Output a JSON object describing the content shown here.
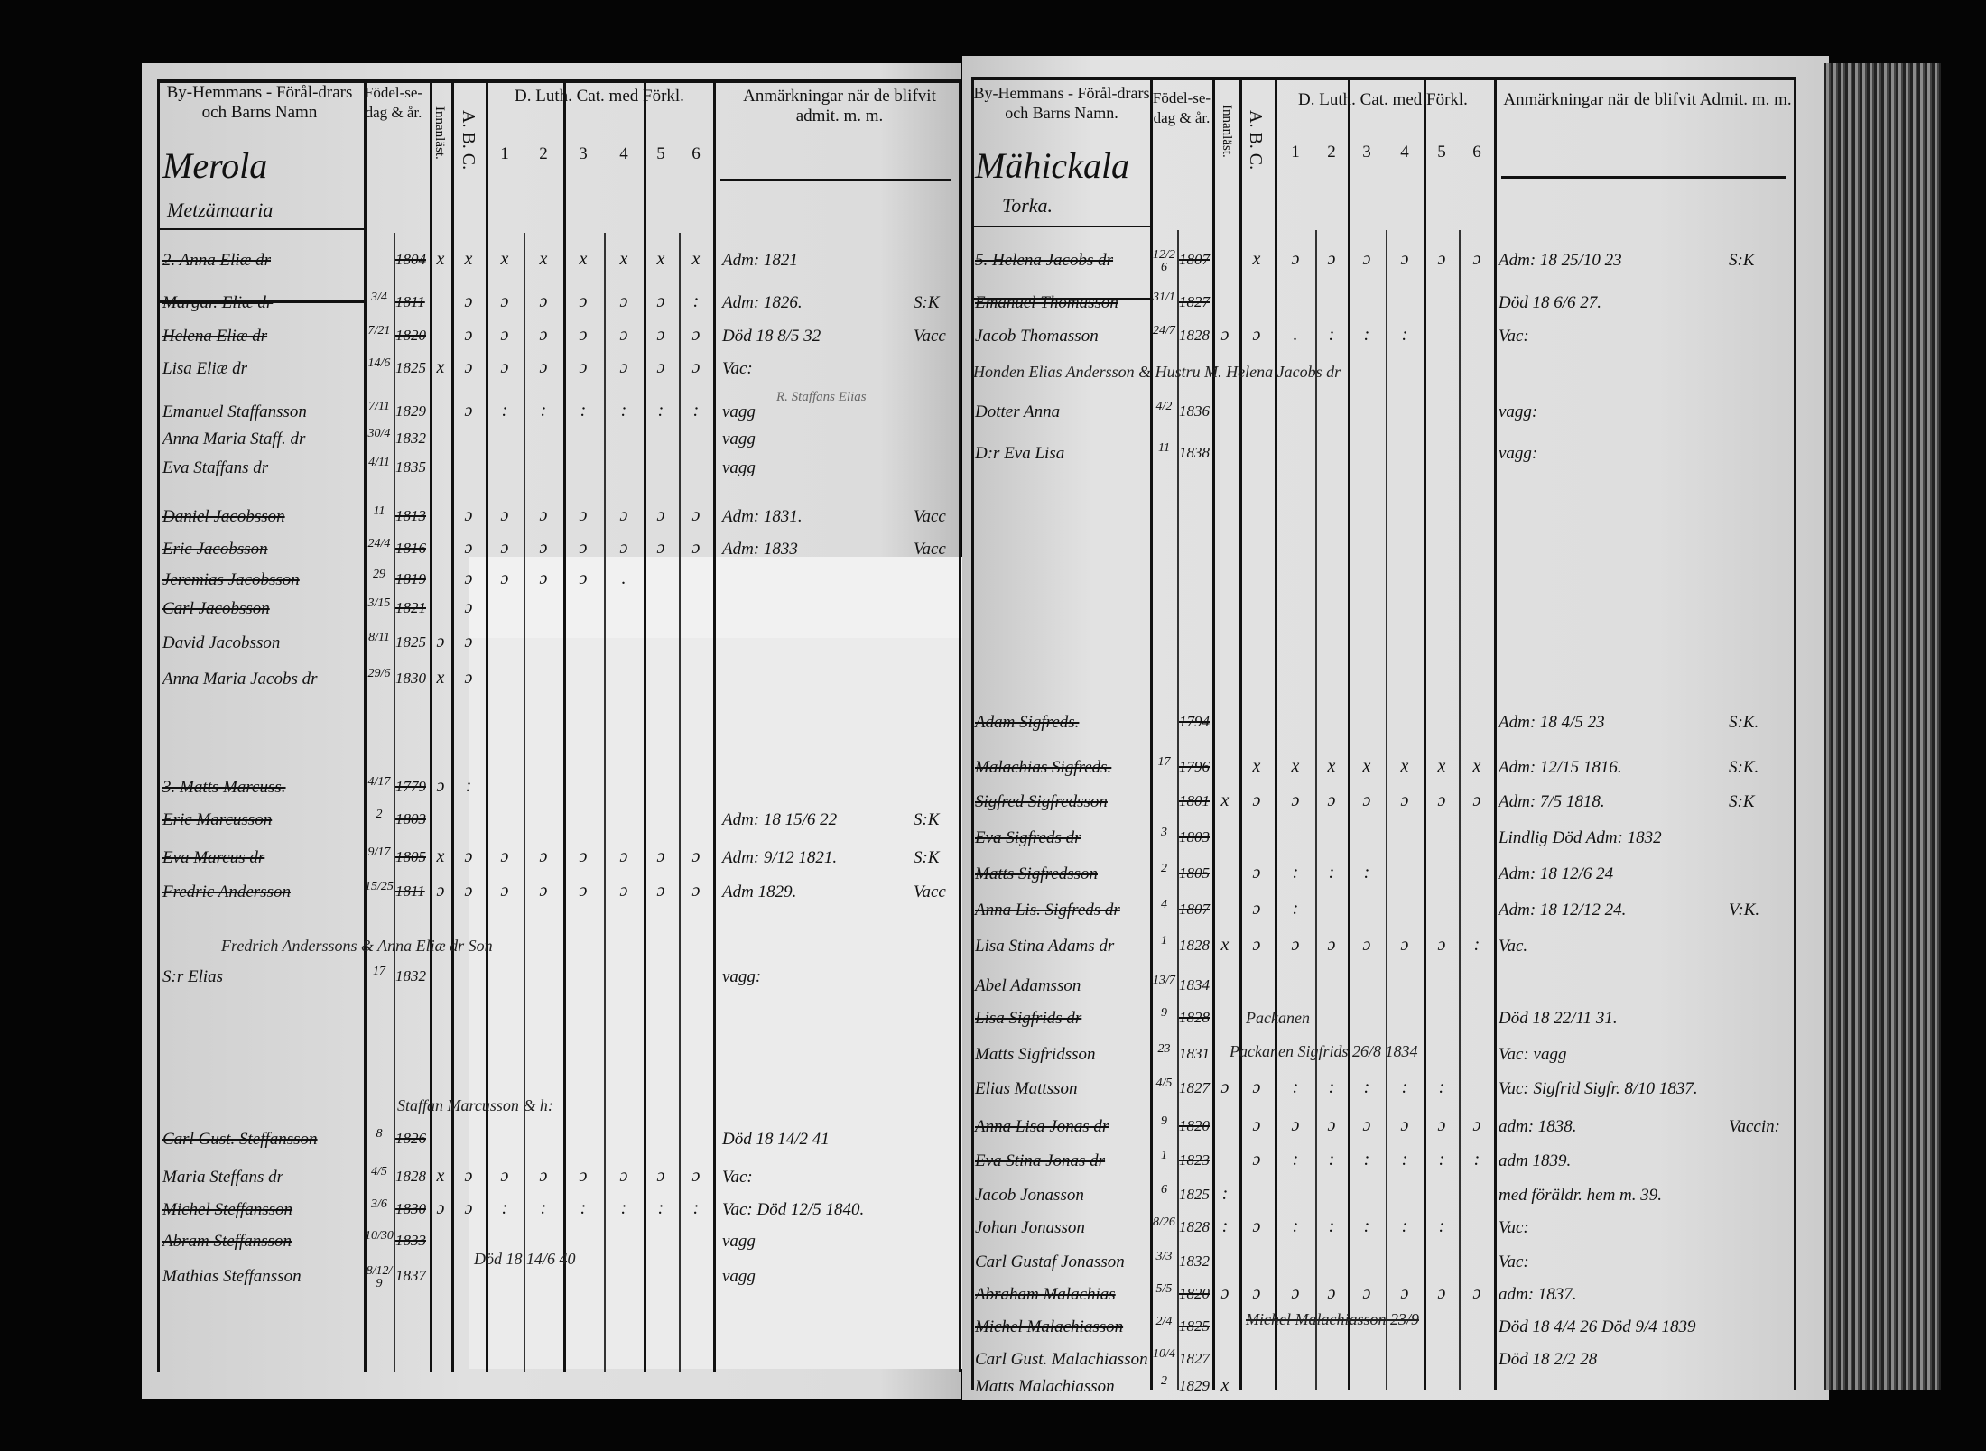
{
  "document_colors": {
    "paper": "#dcdcdc",
    "ink": "#111111",
    "background": "#050505"
  },
  "left_page": {
    "headers": {
      "names": "By-Hemmans - Förål-drars och Barns Namn",
      "birth": "Födel-se-dag & år.",
      "innanlast": "Innanläst.",
      "abc": "A. B. C.",
      "catechism": "D. Luth. Cat. med Förkl.",
      "cat_cols": [
        "1",
        "2",
        "3",
        "4",
        "5",
        "6"
      ],
      "remarks": "Anmärkningar när de blifvit admit. m. m."
    },
    "village": "Merola",
    "farm": "Metzämaaria",
    "rows": [
      {
        "name": "2. Anna Eliæ dr",
        "day": "",
        "year": "1804",
        "marks": [
          "x",
          "x",
          "x",
          "x",
          "x",
          "x",
          "x",
          "x"
        ],
        "remark": "Adm: 1821",
        "side": "",
        "struck": true
      },
      {
        "name": "Margar. Eliæ dr",
        "day": "3/4",
        "year": "1811",
        "marks": [
          "",
          "ɔ",
          "ɔ",
          "ɔ",
          "ɔ",
          "ɔ",
          "ɔ",
          ":"
        ],
        "remark": "Adm: 1826.",
        "side": "S:K",
        "struck": true
      },
      {
        "name": "Helena Eliæ dr",
        "day": "7/21",
        "year": "1820",
        "marks": [
          "",
          "ɔ",
          "ɔ",
          "ɔ",
          "ɔ",
          "ɔ",
          "ɔ",
          "ɔ"
        ],
        "remark": "Död 18 8/5 32",
        "side": "Vacc",
        "struck": true
      },
      {
        "name": "Lisa Eliæ dr",
        "day": "14/6",
        "year": "1825",
        "marks": [
          "x",
          "ɔ",
          "ɔ",
          "ɔ",
          "ɔ",
          "ɔ",
          "ɔ",
          "ɔ"
        ],
        "remark": "Vac:",
        "side": "",
        "struck": false
      },
      {
        "name": "Emanuel Staffansson",
        "day": "7/11",
        "year": "1829",
        "marks": [
          "",
          "ɔ",
          ":",
          ":",
          ":",
          ":",
          ":",
          ":"
        ],
        "remark": "vagg",
        "side": "",
        "struck": false
      },
      {
        "name": "Anna Maria Staff. dr",
        "day": "30/4",
        "year": "1832",
        "marks": [],
        "remark": "vagg",
        "side": "",
        "struck": false
      },
      {
        "name": "Eva Staffans dr",
        "day": "4/11",
        "year": "1835",
        "marks": [],
        "remark": "vagg",
        "side": "",
        "struck": false
      },
      {
        "name": "Daniel Jacobsson",
        "day": "11",
        "year": "1813",
        "marks": [
          "",
          "ɔ",
          "ɔ",
          "ɔ",
          "ɔ",
          "ɔ",
          "ɔ",
          "ɔ"
        ],
        "remark": "Adm: 1831.",
        "side": "Vacc",
        "struck": true
      },
      {
        "name": "Eric Jacobsson",
        "day": "24/4",
        "year": "1816",
        "marks": [
          "",
          "ɔ",
          "ɔ",
          "ɔ",
          "ɔ",
          "ɔ",
          "ɔ",
          "ɔ"
        ],
        "remark": "Adm: 1833",
        "side": "Vacc",
        "struck": true
      },
      {
        "name": "Jeremias Jacobsson",
        "day": "29",
        "year": "1819",
        "marks": [
          "",
          "ɔ",
          "ɔ",
          "ɔ",
          "ɔ",
          "."
        ],
        "remark": "",
        "side": "",
        "struck": true
      },
      {
        "name": "Carl Jacobsson",
        "day": "3/15",
        "year": "1821",
        "marks": [
          "",
          "ɔ"
        ],
        "remark": "",
        "side": "",
        "struck": true
      },
      {
        "name": "David Jacobsson",
        "day": "8/11",
        "year": "1825",
        "marks": [
          "ɔ",
          "ɔ"
        ],
        "remark": "",
        "side": "",
        "struck": false
      },
      {
        "name": "Anna Maria Jacobs dr",
        "day": "29/6",
        "year": "1830",
        "marks": [
          "x",
          "ɔ"
        ],
        "remark": "",
        "side": "",
        "struck": false
      },
      {
        "name": "3. Matts Marcuss.",
        "day": "4/17",
        "year": "1779",
        "marks": [
          "ɔ",
          ":"
        ],
        "remark": "",
        "side": "",
        "struck": true
      },
      {
        "name": "Eric Marcusson",
        "day": "2",
        "year": "1803",
        "marks": [],
        "remark": "Adm: 18 15/6 22",
        "side": "S:K",
        "struck": true
      },
      {
        "name": "Eva Marcus dr",
        "day": "9/17",
        "year": "1805",
        "marks": [
          "x",
          "ɔ",
          "ɔ",
          "ɔ",
          "ɔ",
          "ɔ",
          "ɔ",
          "ɔ"
        ],
        "remark": "Adm: 9/12 1821.",
        "side": "S:K",
        "struck": true
      },
      {
        "name": "Fredric Andersson",
        "day": "15/25",
        "year": "1811",
        "marks": [
          "ɔ",
          "ɔ",
          "ɔ",
          "ɔ",
          "ɔ",
          "ɔ",
          "ɔ",
          "ɔ"
        ],
        "remark": "Adm 1829.",
        "side": "Vacc",
        "struck": true
      },
      {
        "name": "S:r Elias",
        "day": "17",
        "year": "1832",
        "marks": [],
        "remark": "vagg:",
        "side": "",
        "struck": false
      },
      {
        "name": "Carl Gust. Steffansson",
        "day": "8",
        "year": "1826",
        "marks": [],
        "remark": "Död 18 14/2 41",
        "side": "",
        "struck": true
      },
      {
        "name": "Maria Steffans dr",
        "day": "4/5",
        "year": "1828",
        "marks": [
          "x",
          "ɔ",
          "ɔ",
          "ɔ",
          "ɔ",
          "ɔ",
          "ɔ",
          "ɔ"
        ],
        "remark": "Vac:",
        "side": "",
        "struck": false
      },
      {
        "name": "Michel Steffansson",
        "day": "3/6",
        "year": "1830",
        "marks": [
          "ɔ",
          "ɔ",
          ":",
          ":",
          ":",
          ":",
          ":",
          ":"
        ],
        "remark": "Vac: Död 12/5 1840.",
        "side": "",
        "struck": true
      },
      {
        "name": "Abram Steffansson",
        "day": "10/30",
        "year": "1833",
        "marks": [],
        "remark": "vagg",
        "side": "",
        "struck": true
      },
      {
        "name": "Mathias Steffansson",
        "day": "8/12/9",
        "year": "1837",
        "marks": [],
        "remark": "vagg",
        "side": "",
        "struck": false
      }
    ],
    "notes": [
      "Fredrich Anderssons & Anna Eliæ dr Son",
      "Staffan Marcusson & h:",
      "Död 18 14/6 40",
      "R. Staffans Elias"
    ]
  },
  "right_page": {
    "headers": {
      "names": "By-Hemmans - Förål-drars och Barns Namn.",
      "birth": "Födel-se-dag & år.",
      "innanlast": "Innanläst.",
      "abc": "A. B. C.",
      "catechism": "D. Luth. Cat. med Förkl.",
      "cat_cols": [
        "1",
        "2",
        "3",
        "4",
        "5",
        "6"
      ],
      "remarks": "Anmärkningar när de blifvit Admit. m. m."
    },
    "village": "Mähickala",
    "farm": "Torka.",
    "rows": [
      {
        "name": "5. Helena Jacobs dr",
        "day": "12/26",
        "year": "1807",
        "marks": [
          "",
          "x",
          "ɔ",
          "ɔ",
          "ɔ",
          "ɔ",
          "ɔ",
          "ɔ"
        ],
        "remark": "Adm: 18 25/10 23",
        "side": "S:K",
        "struck": true
      },
      {
        "name": "Emanuel Thomasson",
        "day": "31/1",
        "year": "1827",
        "marks": [],
        "remark": "Död 18 6/6 27.",
        "side": "",
        "struck": true
      },
      {
        "name": "Jacob Thomasson",
        "day": "24/7",
        "year": "1828",
        "marks": [
          "ɔ",
          "ɔ",
          ".",
          ":",
          ":",
          ":"
        ],
        "remark": "Vac:",
        "side": "",
        "struck": false
      },
      {
        "name": "Dotter Anna",
        "day": "4/2",
        "year": "1836",
        "marks": [],
        "remark": "vagg:",
        "side": "",
        "struck": false
      },
      {
        "name": "D:r Eva Lisa",
        "day": "11",
        "year": "1838",
        "marks": [],
        "remark": "vagg:",
        "side": "",
        "struck": false
      },
      {
        "name": "Adam Sigfreds.",
        "day": "",
        "year": "1794",
        "marks": [],
        "remark": "Adm: 18 4/5 23",
        "side": "S:K.",
        "struck": true
      },
      {
        "name": "Malachias Sigfreds.",
        "day": "17",
        "year": "1796",
        "marks": [
          "",
          "x",
          "x",
          "x",
          "x",
          "x",
          "x",
          "x"
        ],
        "remark": "Adm: 12/15 1816.",
        "side": "S:K.",
        "struck": true
      },
      {
        "name": "Sigfred Sigfredsson",
        "day": "",
        "year": "1801",
        "marks": [
          "x",
          "ɔ",
          "ɔ",
          "ɔ",
          "ɔ",
          "ɔ",
          "ɔ",
          "ɔ"
        ],
        "remark": "Adm: 7/5 1818.",
        "side": "S:K",
        "struck": true
      },
      {
        "name": "Eva Sigfreds dr",
        "day": "3",
        "year": "1803",
        "marks": [],
        "remark": "Lindlig Död Adm: 1832",
        "side": "",
        "struck": true
      },
      {
        "name": "Matts Sigfredsson",
        "day": "2",
        "year": "1805",
        "marks": [
          "",
          "ɔ",
          ":",
          ":",
          ":"
        ],
        "remark": "Adm: 18 12/6 24",
        "side": "",
        "struck": true
      },
      {
        "name": "Anna Lis. Sigfreds dr",
        "day": "4",
        "year": "1807",
        "marks": [
          "",
          "ɔ",
          ":"
        ],
        "remark": "Adm: 18 12/12 24.",
        "side": "V:K.",
        "struck": true
      },
      {
        "name": "Lisa Stina Adams dr",
        "day": "1",
        "year": "1828",
        "marks": [
          "x",
          "ɔ",
          "ɔ",
          "ɔ",
          "ɔ",
          "ɔ",
          "ɔ",
          ":"
        ],
        "remark": "Vac.",
        "side": "",
        "struck": false
      },
      {
        "name": "Abel Adamsson",
        "day": "13/7",
        "year": "1834",
        "marks": [],
        "remark": "",
        "side": "",
        "struck": false
      },
      {
        "name": "Lisa Sigfrids dr",
        "day": "9",
        "year": "1828",
        "marks": [],
        "remark": "Död 18 22/11 31.",
        "side": "",
        "struck": true
      },
      {
        "name": "Matts Sigfridsson",
        "day": "23",
        "year": "1831",
        "marks": [],
        "remark": "Vac: vagg",
        "side": "",
        "struck": false
      },
      {
        "name": "Elias Mattsson",
        "day": "4/5",
        "year": "1827",
        "marks": [
          "ɔ",
          "ɔ",
          ":",
          ":",
          ":",
          ":",
          ":"
        ],
        "remark": "Vac: Sigfrid Sigfr. 8/10 1837.",
        "side": "",
        "struck": false
      },
      {
        "name": "Anna Lisa Jonas dr",
        "day": "9",
        "year": "1820",
        "marks": [
          "",
          "ɔ",
          "ɔ",
          "ɔ",
          "ɔ",
          "ɔ",
          "ɔ",
          "ɔ"
        ],
        "remark": "adm: 1838.",
        "side": "Vaccin:",
        "struck": true
      },
      {
        "name": "Eva Stina Jonas dr",
        "day": "1",
        "year": "1823",
        "marks": [
          "",
          "ɔ",
          ":",
          ":",
          ":",
          ":",
          ":",
          ":"
        ],
        "remark": "adm 1839.",
        "side": "",
        "struck": true
      },
      {
        "name": "Jacob Jonasson",
        "day": "6",
        "year": "1825",
        "marks": [
          ":"
        ],
        "remark": "med föräldr. hem m. 39.",
        "side": "",
        "struck": false
      },
      {
        "name": "Johan Jonasson",
        "day": "8/26",
        "year": "1828",
        "marks": [
          ":",
          "ɔ",
          ":",
          ":",
          ":",
          ":",
          ":"
        ],
        "remark": "Vac:",
        "side": "",
        "struck": false
      },
      {
        "name": "Carl Gustaf Jonasson",
        "day": "3/3",
        "year": "1832",
        "marks": [],
        "remark": "Vac:",
        "side": "",
        "struck": false
      },
      {
        "name": "Abraham Malachias",
        "day": "5/5",
        "year": "1820",
        "marks": [
          "ɔ",
          "ɔ",
          "ɔ",
          "ɔ",
          "ɔ",
          "ɔ",
          "ɔ",
          "ɔ"
        ],
        "remark": "adm: 1837.",
        "side": "",
        "struck": true
      },
      {
        "name": "Michel Malachiasson",
        "day": "2/4",
        "year": "1825",
        "marks": [],
        "remark": "Död 18 4/4 26  Död 9/4 1839",
        "side": "",
        "struck": true
      },
      {
        "name": "Carl Gust. Malachiasson",
        "day": "10/4",
        "year": "1827",
        "marks": [],
        "remark": "Död 18 2/2 28",
        "side": "",
        "struck": false
      },
      {
        "name": "Matts Malachiasson",
        "day": "2",
        "year": "1829",
        "marks": [
          "x"
        ],
        "remark": "",
        "side": "",
        "struck": false
      }
    ],
    "notes": [
      "Honden Elias Andersson & Hustru M. Helena Jacobs dr",
      "Packanen",
      "Packanen Sigfrids 26/8 1834",
      "Michel Malachiasson 23/9"
    ]
  }
}
